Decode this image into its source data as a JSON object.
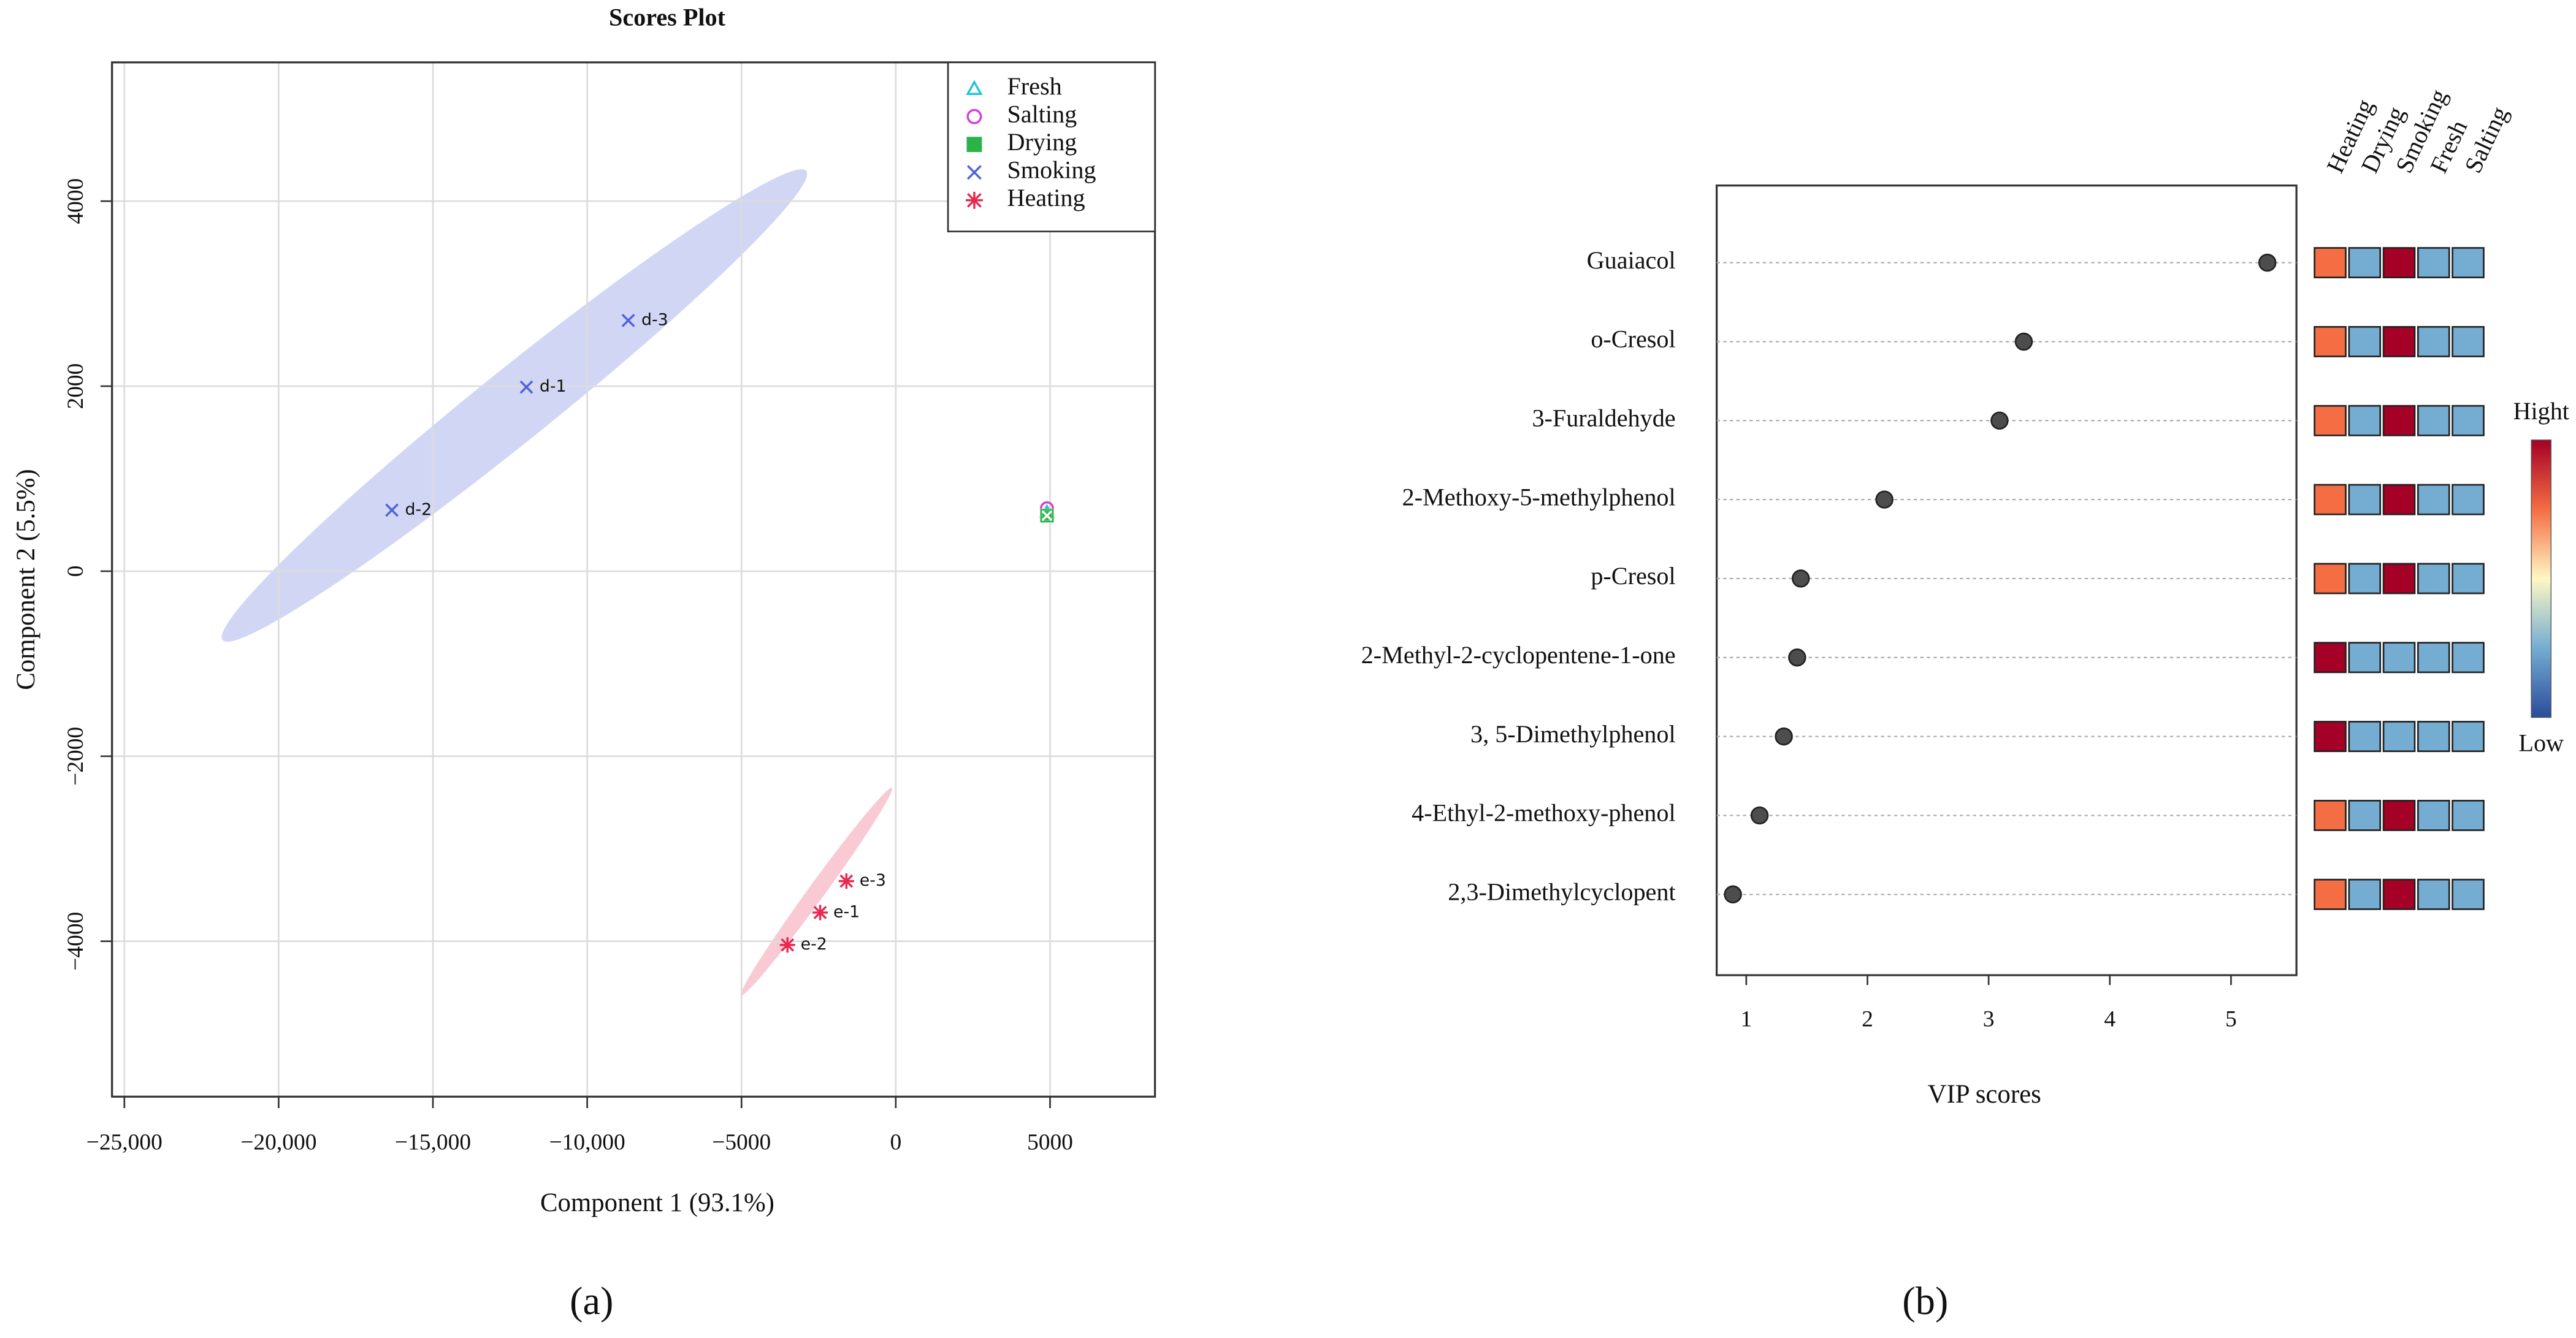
{
  "chart_data": [
    {
      "type": "scatter",
      "title": "Scores Plot",
      "x_label": "Component 1 (93.1%)",
      "y_label": "Component 2 (5.5%)",
      "xlim": [
        -25400,
        8400
      ],
      "ylim": [
        -5680,
        5500
      ],
      "xticks": [
        {
          "value": -25000,
          "label": "−25,000"
        },
        {
          "value": -20000,
          "label": "−20,000"
        },
        {
          "value": -15000,
          "label": "−15,000"
        },
        {
          "value": -10000,
          "label": "−10,000"
        },
        {
          "value": -5000,
          "label": "−5000"
        },
        0,
        5000
      ],
      "yticks": [
        {
          "value": -4000,
          "label": "−4000"
        },
        {
          "value": -2000,
          "label": "−2000"
        },
        0,
        2000,
        4000
      ],
      "grid": true,
      "legend": "top-right",
      "series": [
        {
          "name": "Fresh",
          "color": "#22c4d8",
          "marker": "triangle",
          "x": [
            4900
          ],
          "values": [
            640
          ]
        },
        {
          "name": "Salting",
          "color": "#d83cd8",
          "marker": "circle",
          "x": [
            4900
          ],
          "values": [
            680
          ]
        },
        {
          "name": "Drying",
          "color": "#2bb34a",
          "marker": "boxcross",
          "x": [
            4900
          ],
          "values": [
            600
          ]
        },
        {
          "name": "Smoking",
          "color": "#4f63d8",
          "marker": "cross",
          "x": [
            -11970,
            -16330,
            -8670
          ],
          "values": [
            1990,
            660,
            2710
          ],
          "point_labels": [
            "d-1",
            "d-2",
            "d-3"
          ]
        },
        {
          "name": "Heating",
          "color": "#e8294f",
          "marker": "asterisk",
          "x": [
            -2450,
            -3510,
            -1600
          ],
          "values": [
            -3690,
            -4040,
            -3350
          ],
          "point_labels": [
            "e-1",
            "e-2",
            "e-3"
          ]
        }
      ]
    },
    {
      "type": "dot",
      "x_label": "VIP scores",
      "xlim": [
        0.756,
        5.54
      ],
      "xticks": [
        1,
        2,
        3,
        4,
        5
      ],
      "color": "#4d4d4d",
      "categories": [
        "Guaiacol",
        "o-Cresol",
        "3-Furaldehyde",
        "2-Methoxy-5-methylphenol",
        "p-Cresol",
        "2-Methyl-2-cyclopentene-1-one",
        "3, 5-Dimethylphenol",
        "4-Ethyl-2-methoxy-phenol",
        "2,3-Dimethylcyclopent"
      ],
      "values": [
        5.3,
        3.29,
        3.09,
        2.14,
        1.45,
        1.42,
        1.31,
        1.11,
        0.89
      ],
      "heatmap": {
        "columns": [
          "Heating",
          "Drying",
          "Smoking",
          "Fresh",
          "Salting"
        ],
        "values": [
          [
            0.5,
            -0.5,
            1,
            -0.5,
            -0.5
          ],
          [
            0.5,
            -0.5,
            1,
            -0.5,
            -0.5
          ],
          [
            0.5,
            -0.5,
            1,
            -0.5,
            -0.5
          ],
          [
            0.5,
            -0.5,
            1,
            -0.5,
            -0.5
          ],
          [
            0.5,
            -0.5,
            1,
            -0.5,
            -0.5
          ],
          [
            1,
            -0.5,
            -0.5,
            -0.5,
            -0.5
          ],
          [
            1,
            -0.5,
            -0.5,
            -0.5,
            -0.5
          ],
          [
            0.5,
            -0.5,
            1,
            -0.5,
            -0.5
          ],
          [
            0.5,
            -0.5,
            1,
            -0.5,
            -0.5
          ]
        ],
        "lim": [
          -1,
          1
        ],
        "colors": [
          "#2b4b9b",
          "#74add1",
          "#fef7c4",
          "#f46d43",
          "#a50026"
        ],
        "high_label": "Hight",
        "low_label": "Low"
      }
    }
  ],
  "captions": [
    "(a)",
    "(b)"
  ]
}
